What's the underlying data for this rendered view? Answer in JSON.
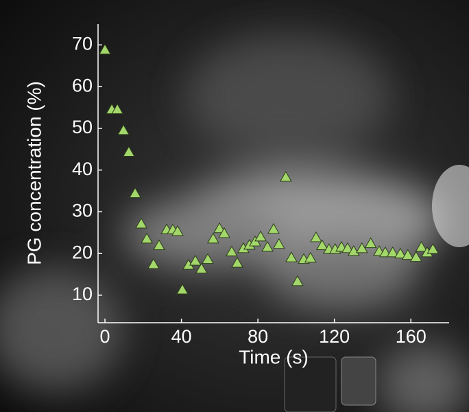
{
  "chart_data": {
    "type": "scatter",
    "x_label": "Time (s)",
    "y_label": "PG concentration (%)",
    "x": [
      0,
      3.6,
      6.5,
      9.7,
      12.5,
      15.8,
      19,
      21.9,
      25.4,
      28.3,
      32.3,
      35.5,
      38,
      40.5,
      43.7,
      47.3,
      50.5,
      53.8,
      56.6,
      59.9,
      62.4,
      66.3,
      69.2,
      72.4,
      75.6,
      78.5,
      81.4,
      85,
      88.2,
      91,
      94.6,
      97.5,
      100.7,
      104,
      107.5,
      110.4,
      113.6,
      117.2,
      120.4,
      123.7,
      126.9,
      130.1,
      134.4,
      139,
      143.4,
      146.6,
      150.5,
      154.5,
      158.4,
      162.7,
      165.5,
      168.5,
      171.5
    ],
    "values": [
      68.8,
      54.5,
      54.5,
      49.5,
      44.3,
      34.4,
      27.1,
      23.5,
      17.4,
      21.9,
      25.7,
      25.7,
      25.3,
      11.3,
      17.2,
      18.2,
      16.3,
      18.6,
      23.5,
      26,
      24.8,
      20.4,
      17.7,
      21.2,
      22,
      22.8,
      24,
      21.5,
      25.8,
      22.2,
      38.3,
      19,
      13.3,
      18.6,
      18.9,
      23.8,
      21.9,
      21,
      21,
      21.5,
      21.2,
      20.5,
      21.2,
      22.4,
      20.5,
      20.2,
      20.2,
      19.9,
      19.6,
      19.1,
      21.5,
      20.2,
      21
    ],
    "color": "#a3d76b",
    "xlim": [
      -3.6,
      180
    ],
    "ylim": [
      3.4,
      75
    ],
    "xticks": [
      0,
      40,
      80,
      120,
      160
    ],
    "yticks": [
      10,
      20,
      30,
      40,
      50,
      60,
      70
    ]
  }
}
